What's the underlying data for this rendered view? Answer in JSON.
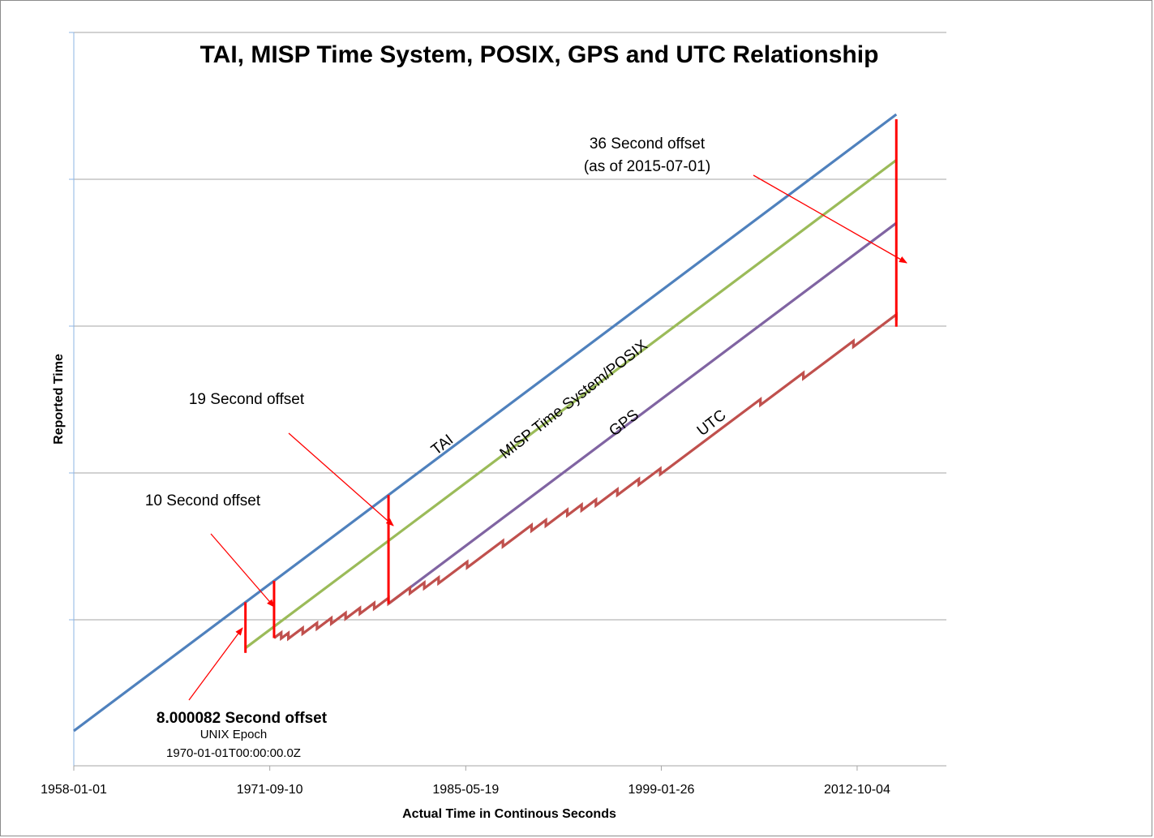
{
  "chart_data": {
    "type": "line",
    "title": "TAI, MISP Time System, POSIX, GPS and UTC Relationship",
    "xlabel": "Actual Time in Continous Seconds",
    "ylabel": "Reported Time",
    "x_tick_labels": [
      "1958-01-01",
      "1971-09-10",
      "1985-05-19",
      "1999-01-26",
      "2012-10-04"
    ],
    "x_ticks_year": [
      1958.0,
      1971.7,
      1985.4,
      1999.07,
      2012.76
    ],
    "xlim": [
      1958.0,
      2019.0
    ],
    "grid": "horizontal",
    "legend": "none",
    "series": [
      {
        "name": "TAI",
        "color": "#4F81BD",
        "x": [
          1958.0,
          2015.5
        ],
        "offset": [
          0,
          0
        ]
      },
      {
        "name": "MISP Time System/POSIX",
        "color": "#9BBB59",
        "x": [
          1970.0,
          2015.5
        ],
        "offset": [
          8.000082,
          8.000082
        ]
      },
      {
        "name": "GPS",
        "color": "#8064A2",
        "x": [
          1980.0,
          2015.5
        ],
        "offset": [
          19,
          19
        ]
      },
      {
        "name": "UTC",
        "color": "#C0504D",
        "x": [
          1972.0,
          1972.5,
          1973.0,
          1974.0,
          1975.0,
          1976.0,
          1977.0,
          1978.0,
          1979.0,
          1980.0,
          1981.5,
          1982.5,
          1983.5,
          1985.5,
          1988.0,
          1990.0,
          1991.0,
          1992.5,
          1993.5,
          1994.5,
          1996.0,
          1997.5,
          1999.0,
          2006.0,
          2009.0,
          2012.5,
          2015.5
        ],
        "tai_minus_utc": [
          10,
          11,
          12,
          13,
          14,
          15,
          16,
          17,
          18,
          19,
          20,
          21,
          22,
          23,
          24,
          25,
          26,
          27,
          28,
          29,
          30,
          31,
          32,
          33,
          34,
          35,
          36
        ]
      }
    ],
    "annotations": [
      {
        "text": "36 Second offset",
        "line2": "(as of 2015-07-01)"
      },
      {
        "text": "19 Second offset"
      },
      {
        "text": "10 Second offset"
      },
      {
        "text": "8.000082 Second offset",
        "line2": "UNIX Epoch",
        "line3": "1970-01-01T00:00:00.0Z"
      }
    ],
    "colors": {
      "offset_marker": "#FF0000",
      "grid": "#A6A6A6",
      "axis": "#8EB4E3"
    }
  }
}
